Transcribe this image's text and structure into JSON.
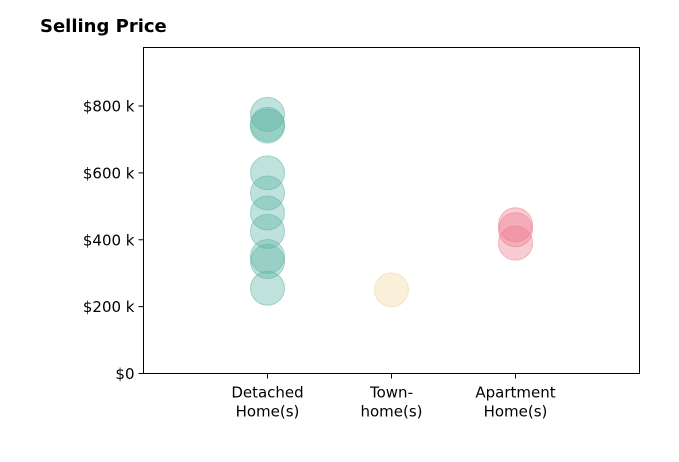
{
  "chart_data": {
    "type": "scatter",
    "title": "Selling Price",
    "xlabel": "",
    "ylabel": "",
    "categories": [
      {
        "lines": [
          "Detached",
          "Home(s)"
        ]
      },
      {
        "lines": [
          "Town-",
          "home(s)"
        ]
      },
      {
        "lines": [
          "Apartment",
          "Home(s)"
        ]
      }
    ],
    "yticks": [
      {
        "value": 0,
        "label": "$0"
      },
      {
        "value": 200,
        "label": "$200 k"
      },
      {
        "value": 400,
        "label": "$400 k"
      },
      {
        "value": 600,
        "label": "$600 k"
      },
      {
        "value": 800,
        "label": "$800 k"
      }
    ],
    "xlim": [
      0,
      4
    ],
    "ylim": [
      0,
      975
    ],
    "grid": false,
    "series": [
      {
        "category_index": 0,
        "color": "#5ab4a4",
        "values": [
          775,
          745,
          740,
          600,
          540,
          480,
          425,
          350,
          335,
          255
        ]
      },
      {
        "category_index": 1,
        "color": "#f2d49a",
        "values": [
          250
        ]
      },
      {
        "category_index": 2,
        "color": "#ec7a8c",
        "values": [
          445,
          430,
          390
        ]
      }
    ]
  }
}
